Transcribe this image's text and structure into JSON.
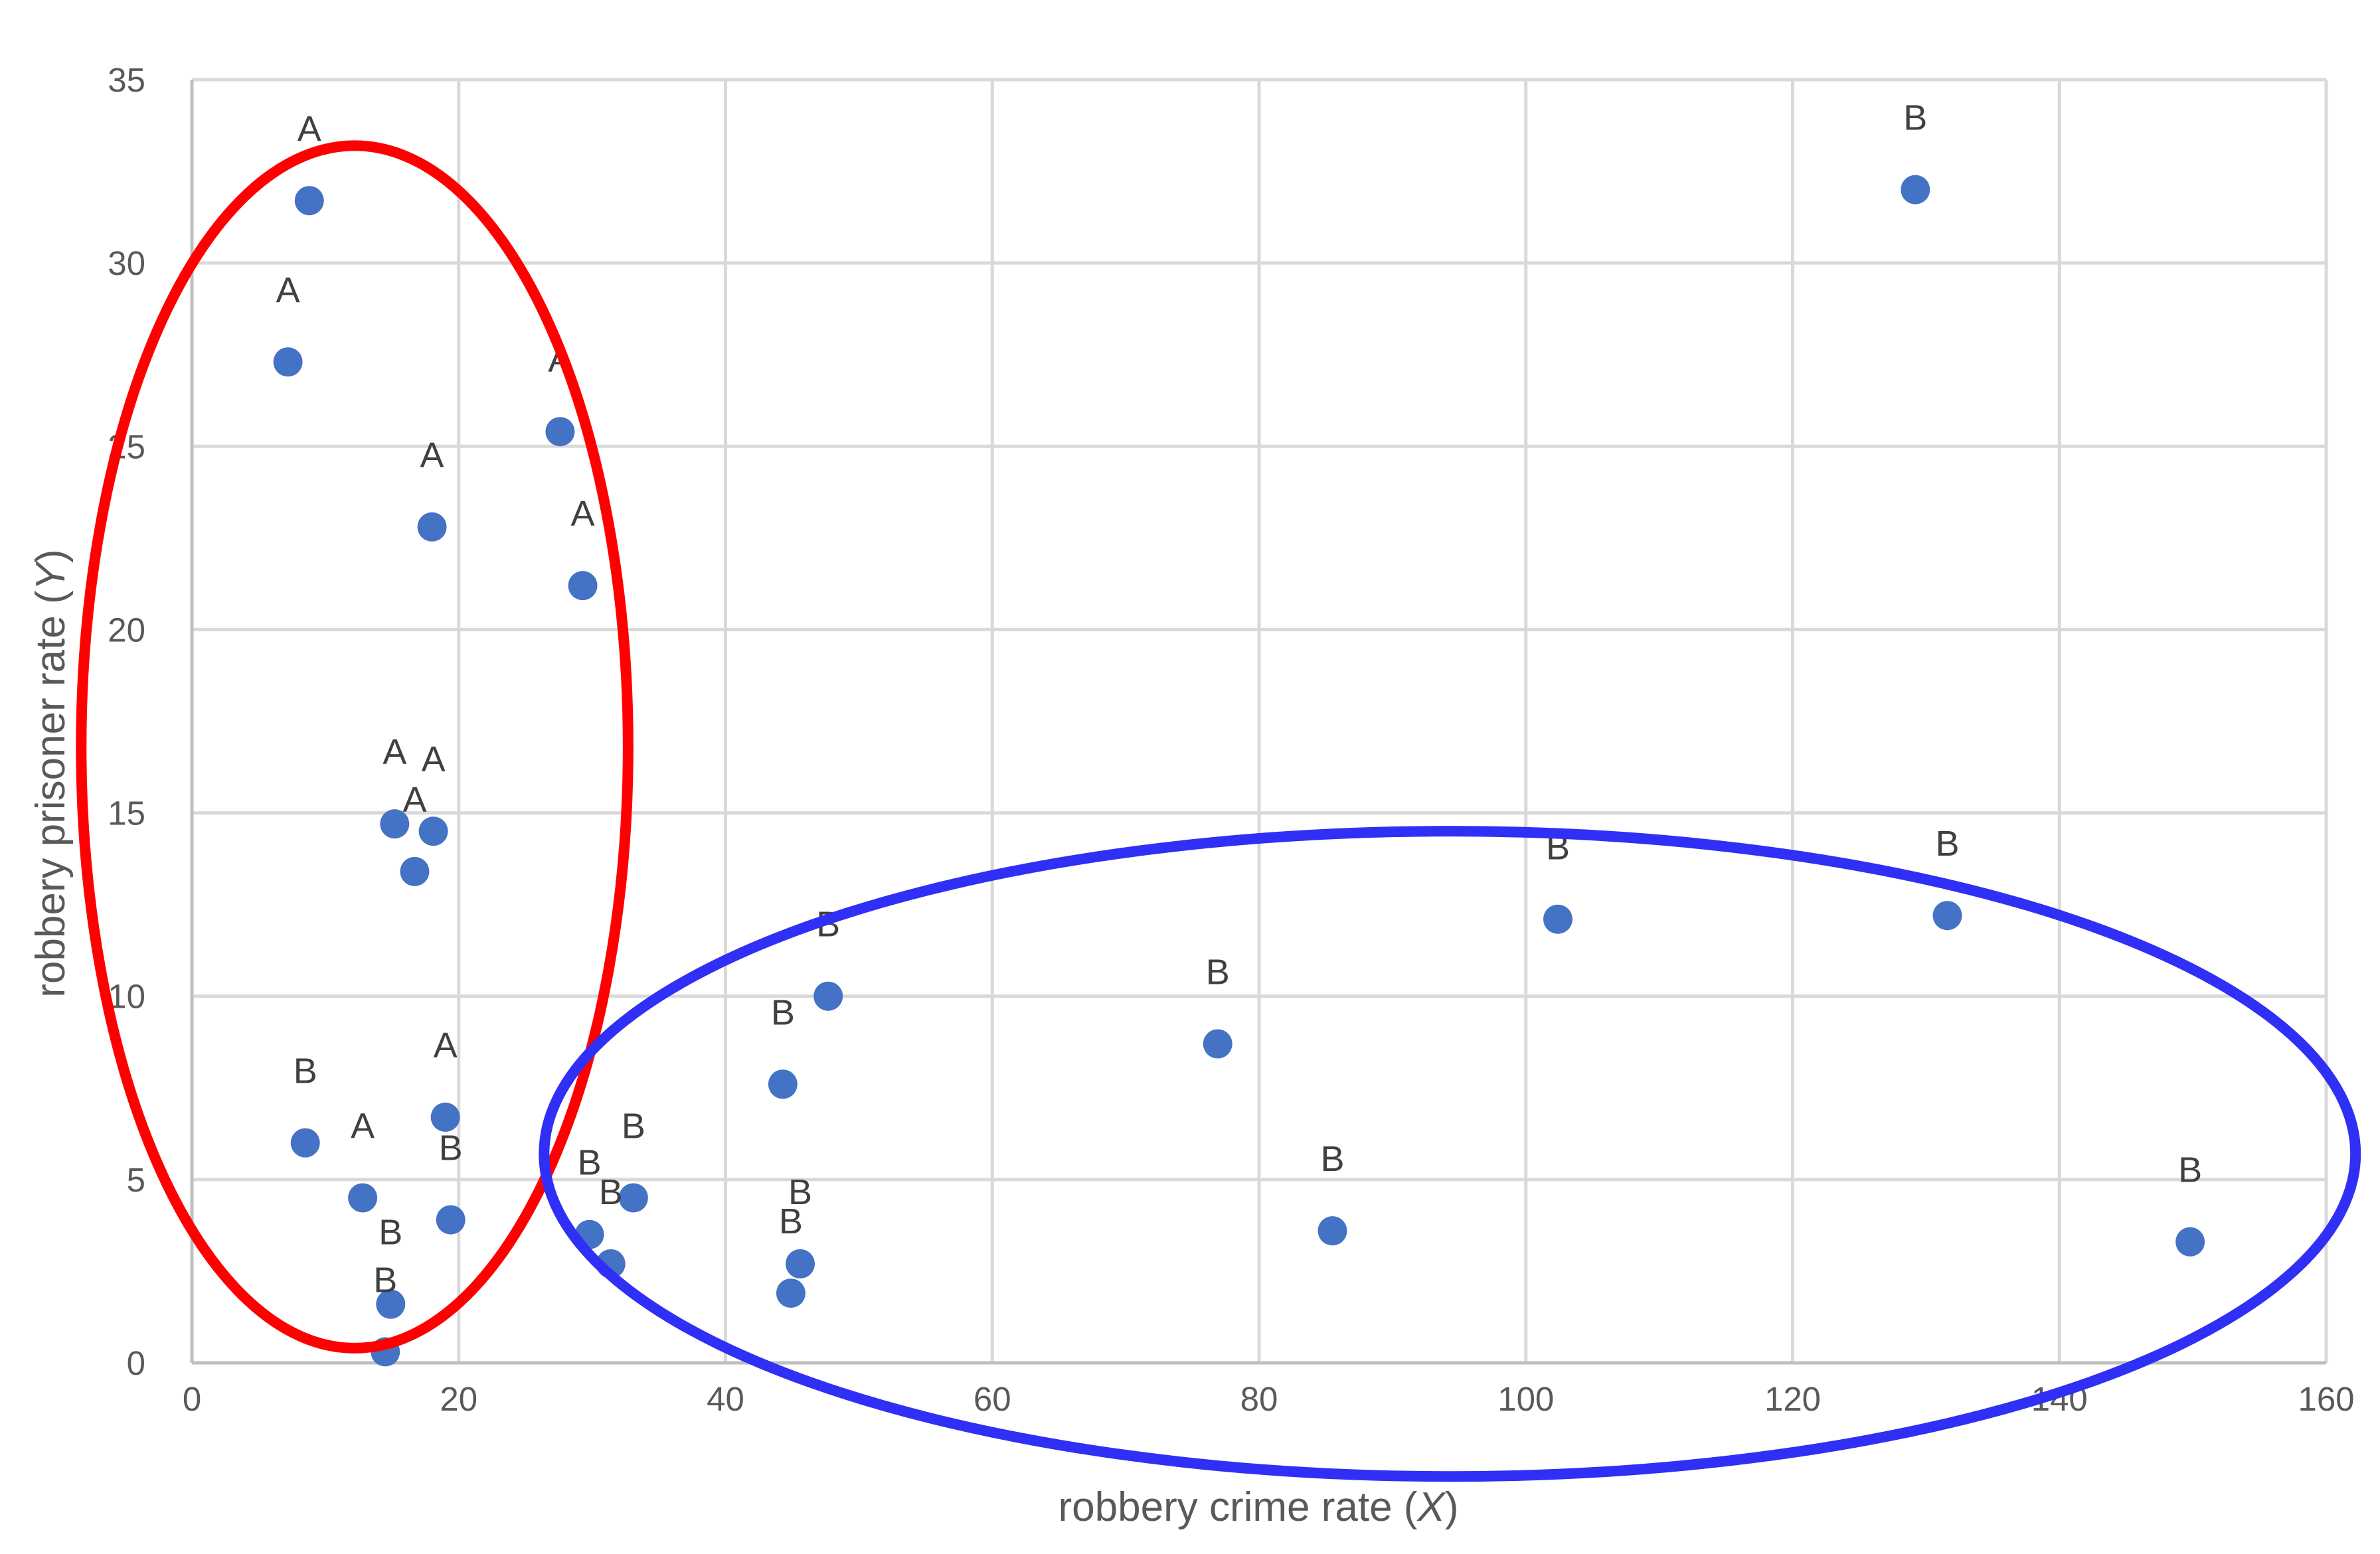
{
  "chart_data": {
    "type": "scatter",
    "title": "",
    "xlabel": {
      "prefix": "robbery crime rate (",
      "var": "X",
      "suffix": ")"
    },
    "ylabel": {
      "prefix": "robbery prisoner rate (",
      "var": "Y",
      "suffix": ")"
    },
    "xlim": [
      0,
      160
    ],
    "ylim": [
      0,
      35
    ],
    "xticks": [
      0,
      20,
      40,
      60,
      80,
      100,
      120,
      140,
      160
    ],
    "yticks": [
      0,
      5,
      10,
      15,
      20,
      25,
      30,
      35
    ],
    "grid": true,
    "marker_color": "#4472c4",
    "points": [
      {
        "x": 8.8,
        "y": 31.7,
        "label": "A"
      },
      {
        "x": 7.2,
        "y": 27.3,
        "label": "A"
      },
      {
        "x": 27.6,
        "y": 25.4,
        "label": "A"
      },
      {
        "x": 18.0,
        "y": 22.8,
        "label": "A"
      },
      {
        "x": 29.3,
        "y": 21.2,
        "label": "A"
      },
      {
        "x": 15.2,
        "y": 14.7,
        "label": "A"
      },
      {
        "x": 18.1,
        "y": 14.5,
        "label": "A"
      },
      {
        "x": 16.7,
        "y": 13.4,
        "label": "A"
      },
      {
        "x": 19.0,
        "y": 6.7,
        "label": "A"
      },
      {
        "x": 12.8,
        "y": 4.5,
        "label": "A"
      },
      {
        "x": 8.5,
        "y": 6.0,
        "label": "B"
      },
      {
        "x": 19.4,
        "y": 3.9,
        "label": "B"
      },
      {
        "x": 14.9,
        "y": 1.6,
        "label": "B"
      },
      {
        "x": 14.5,
        "y": 0.3,
        "label": "B"
      },
      {
        "x": 29.8,
        "y": 3.5,
        "label": "B"
      },
      {
        "x": 31.4,
        "y": 2.7,
        "label": "B"
      },
      {
        "x": 33.1,
        "y": 4.5,
        "label": "B"
      },
      {
        "x": 44.3,
        "y": 7.6,
        "label": "B"
      },
      {
        "x": 47.7,
        "y": 10.0,
        "label": "B"
      },
      {
        "x": 45.6,
        "y": 2.7,
        "label": "B"
      },
      {
        "x": 44.9,
        "y": 1.9,
        "label": "B"
      },
      {
        "x": 76.9,
        "y": 8.7,
        "label": "B"
      },
      {
        "x": 85.5,
        "y": 3.6,
        "label": "B"
      },
      {
        "x": 102.4,
        "y": 12.1,
        "label": "B"
      },
      {
        "x": 129.2,
        "y": 32.0,
        "label": "B"
      },
      {
        "x": 131.6,
        "y": 12.2,
        "label": "B"
      },
      {
        "x": 149.8,
        "y": 3.3,
        "label": "B"
      }
    ],
    "annotations": [
      {
        "shape": "ellipse",
        "color": "#ff0000",
        "cx": 12.2,
        "cy": 16.8,
        "rx": 20.5,
        "ry": 16.4
      },
      {
        "shape": "ellipse",
        "color": "#2f2ff5",
        "cx": 94.3,
        "cy": 5.7,
        "rx": 67.9,
        "ry": 8.8
      }
    ]
  }
}
